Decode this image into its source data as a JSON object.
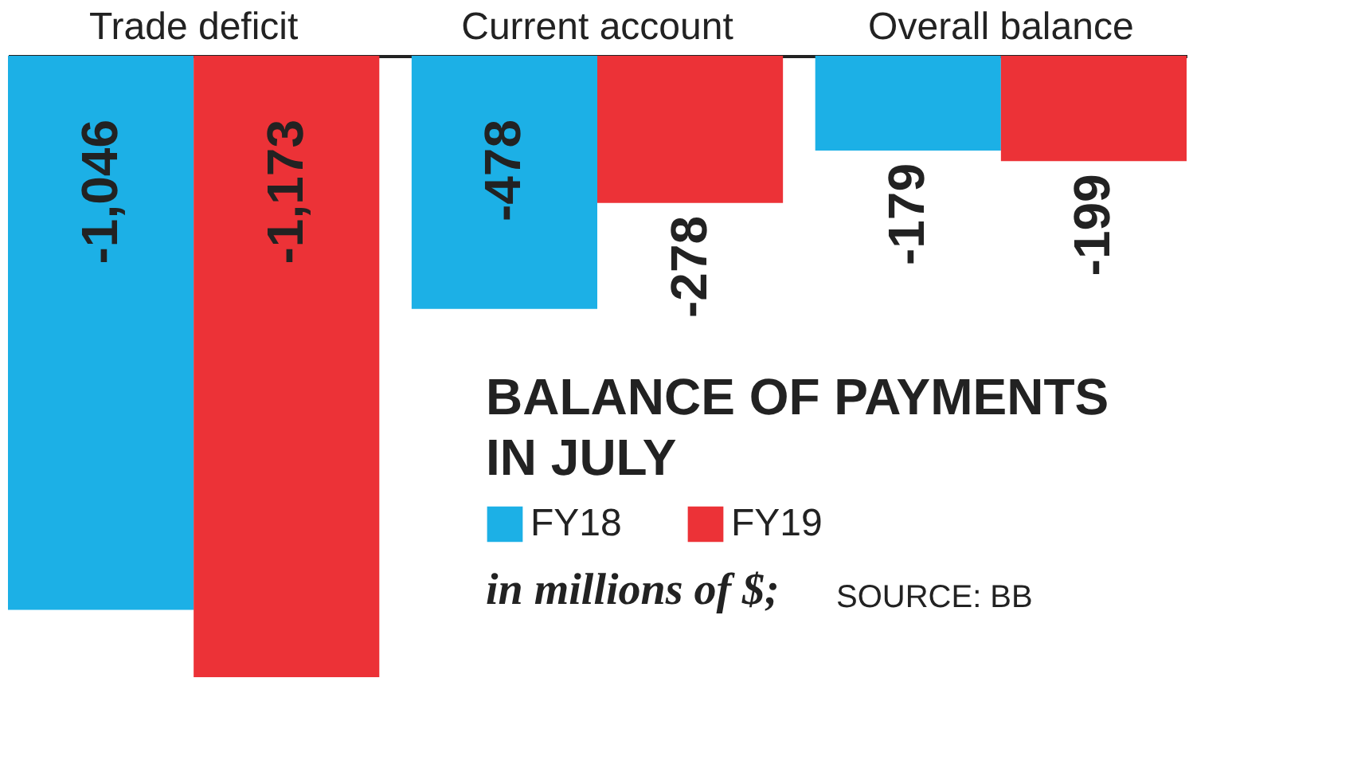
{
  "chart_data": {
    "type": "bar",
    "title": "BALANCE OF PAYMENTS IN JULY",
    "subtitle": "in millions of $;",
    "annotations": [
      "SOURCE: BB"
    ],
    "categories": [
      "Trade deficit",
      "Current account",
      "Overall balance"
    ],
    "series": [
      {
        "name": "FY18",
        "color": "#1cb0e6",
        "values": [
          -1046,
          -478,
          -179
        ],
        "value_labels": [
          "-1,046",
          "-478",
          "-179"
        ]
      },
      {
        "name": "FY19",
        "color": "#ec3237",
        "values": [
          -1173,
          -278,
          -199
        ],
        "value_labels": [
          "-1,173",
          "-278",
          "-199"
        ]
      }
    ],
    "legend": "bottom right"
  }
}
